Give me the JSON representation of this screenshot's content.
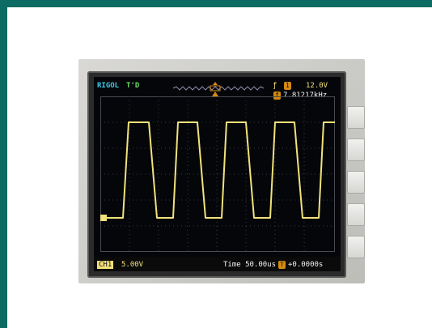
{
  "scope": {
    "brand": "RIGOL",
    "trigger_status": "T'D",
    "trigger_level": "12.0V",
    "frequency": "7.81217kHz",
    "channel": "CH1",
    "channel_scale": "5.00V",
    "timebase": "Time 50.00us",
    "trigger_offset": "+0.0000s",
    "trace_color": "#f2e27a"
  }
}
